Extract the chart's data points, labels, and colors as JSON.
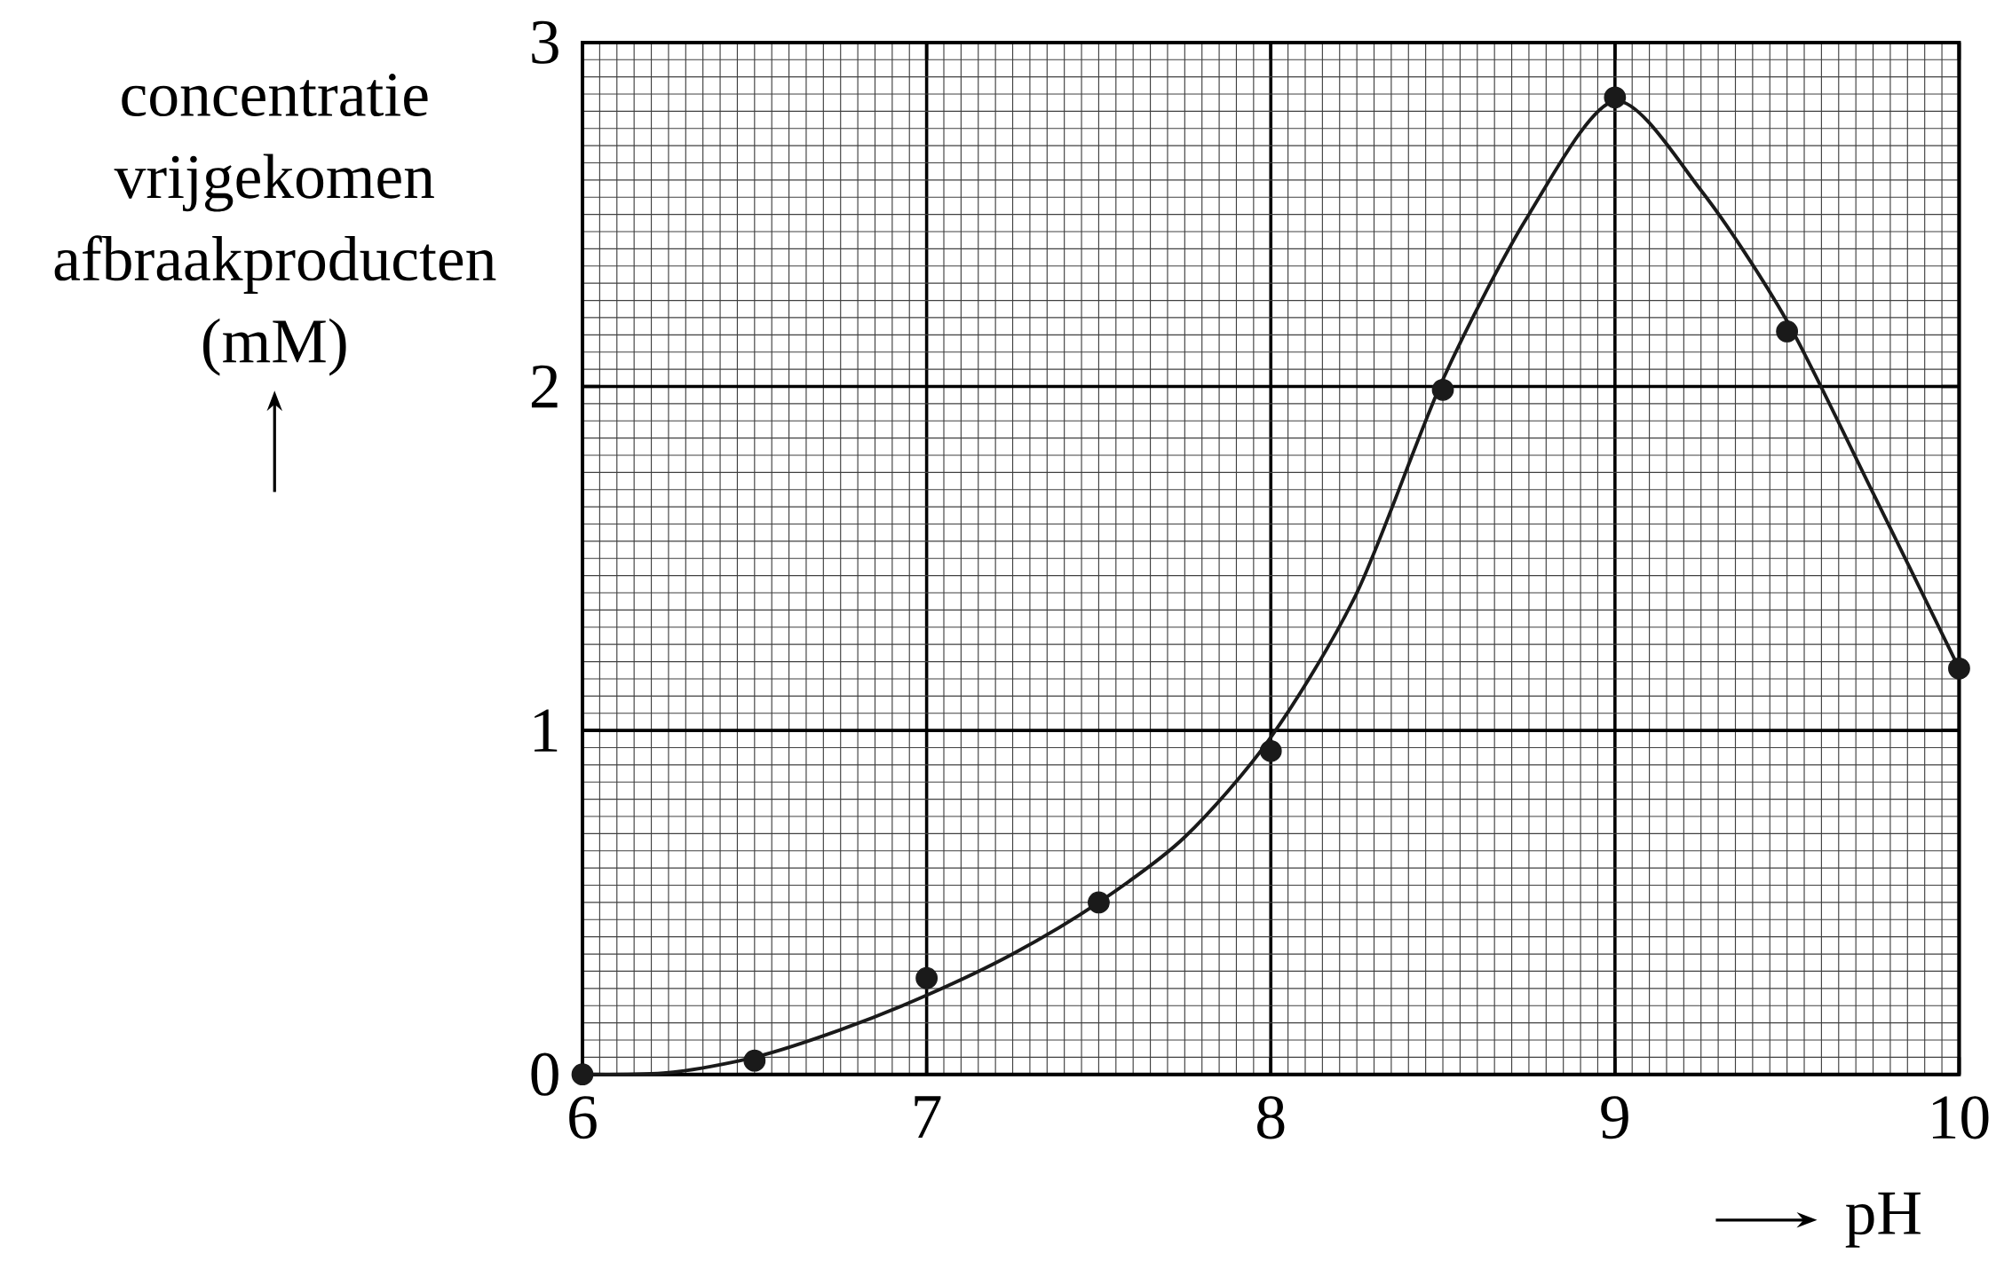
{
  "chart_data": {
    "type": "scatter",
    "xlabel": "pH",
    "ylabel": "concentratie vrijgekomen afbraakproducten (mM)",
    "xlim": [
      6,
      10
    ],
    "ylim": [
      0,
      3
    ],
    "xticks": [
      6,
      7,
      8,
      9,
      10
    ],
    "yticks": [
      0,
      1,
      2,
      3
    ],
    "grid": true,
    "series": [
      {
        "marker": "circle",
        "color": "#1a1a1a",
        "x": [
          6,
          6.5,
          7,
          7.5,
          8,
          8.5,
          9,
          9.5,
          10
        ],
        "values": [
          0,
          0.04,
          0.28,
          0.5,
          0.94,
          1.99,
          2.84,
          2.16,
          1.18
        ]
      },
      {
        "type": "line",
        "marker": "none",
        "line_style": "solid",
        "color": "#1a1a1a",
        "x": [
          6,
          6.25,
          6.5,
          6.75,
          7,
          7.25,
          7.5,
          7.75,
          8,
          8.25,
          8.5,
          8.75,
          9,
          9.25,
          9.5,
          9.75,
          10
        ],
        "values": [
          0,
          0.005,
          0.05,
          0.13,
          0.23,
          0.35,
          0.5,
          0.69,
          0.98,
          1.4,
          2.02,
          2.5,
          2.83,
          2.57,
          2.19,
          1.69,
          1.18
        ]
      }
    ]
  }
}
